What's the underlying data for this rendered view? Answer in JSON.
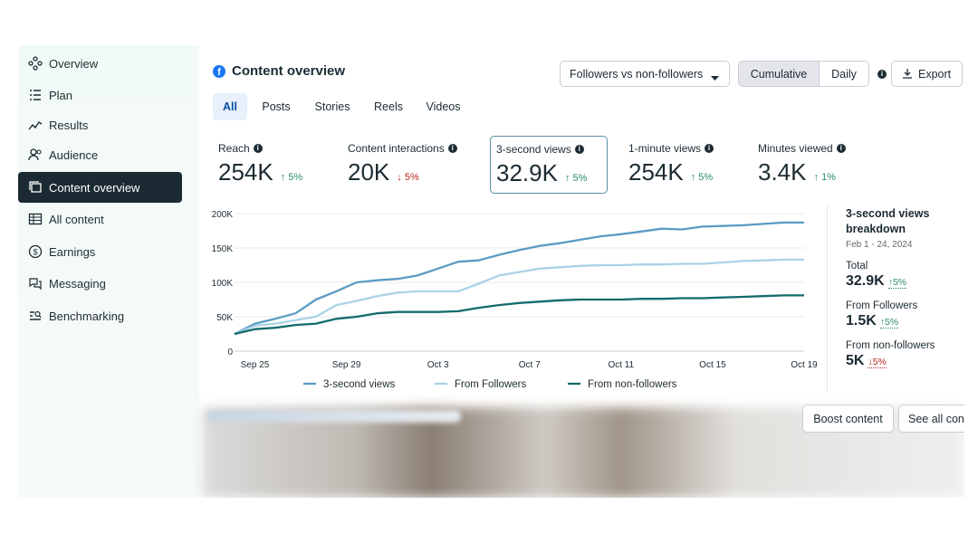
{
  "sidebar": {
    "items": [
      {
        "label": "Overview",
        "icon": "overview-icon",
        "active": false
      },
      {
        "label": "Plan",
        "icon": "plan-icon",
        "active": false
      },
      {
        "label": "Results",
        "icon": "results-icon",
        "active": false
      },
      {
        "label": "Audience",
        "icon": "audience-icon",
        "active": false
      },
      {
        "label": "Content overview",
        "icon": "content-overview-icon",
        "active": true
      },
      {
        "label": "All content",
        "icon": "all-content-icon",
        "active": false
      },
      {
        "label": "Earnings",
        "icon": "earnings-icon",
        "active": false
      },
      {
        "label": "Messaging",
        "icon": "messaging-icon",
        "active": false
      },
      {
        "label": "Benchmarking",
        "icon": "benchmarking-icon",
        "active": false
      }
    ]
  },
  "header": {
    "title": "Content overview",
    "filter_select": "Followers vs non-followers",
    "toggle": [
      "Cumulative",
      "Daily"
    ],
    "toggle_selected": "Cumulative",
    "export_label": "Export"
  },
  "tabs": [
    {
      "label": "All",
      "active": true
    },
    {
      "label": "Posts",
      "active": false
    },
    {
      "label": "Stories",
      "active": false
    },
    {
      "label": "Reels",
      "active": false
    },
    {
      "label": "Videos",
      "active": false
    }
  ],
  "metrics": [
    {
      "label": "Reach",
      "value": "254K",
      "change": "5%",
      "direction": "up",
      "selected": false
    },
    {
      "label": "Content interactions",
      "value": "20K",
      "change": "5%",
      "direction": "down",
      "selected": false
    },
    {
      "label": "3-second views",
      "value": "32.9K",
      "change": "5%",
      "direction": "up",
      "selected": true
    },
    {
      "label": "1-minute views",
      "value": "254K",
      "change": "5%",
      "direction": "up",
      "selected": false
    },
    {
      "label": "Minutes viewed",
      "value": "3.4K",
      "change": "1%",
      "direction": "up",
      "selected": false
    }
  ],
  "chart_data": {
    "type": "line",
    "x_tick_labels": [
      "Sep 25",
      "Sep 29",
      "Oct 3",
      "Oct 7",
      "Oct 11",
      "Oct 15",
      "Oct 19"
    ],
    "y_tick_labels": [
      "0",
      "50K",
      "100K",
      "150K",
      "200K"
    ],
    "ylim": [
      0,
      200000
    ],
    "x_count": 29,
    "series": [
      {
        "name": "3-second views",
        "color": "#5b9bc4",
        "values": [
          25000,
          40000,
          47000,
          55000,
          75000,
          87000,
          100000,
          103000,
          105000,
          110000,
          120000,
          130000,
          132000,
          140000,
          147000,
          153000,
          157000,
          162000,
          167000,
          170000,
          174000,
          178000,
          177000,
          181000,
          182000,
          183000,
          185000,
          187000,
          187000
        ]
      },
      {
        "name": "From Followers",
        "color": "#a9d3e6",
        "values": [
          25000,
          37000,
          40000,
          45000,
          50000,
          67000,
          73000,
          80000,
          85000,
          87000,
          87000,
          87000,
          98000,
          110000,
          115000,
          120000,
          122000,
          124000,
          125000,
          125000,
          126000,
          126000,
          127000,
          127000,
          129000,
          131000,
          132000,
          133000,
          133000
        ]
      },
      {
        "name": "From non-followers",
        "color": "#146b6b",
        "values": [
          25000,
          32000,
          34000,
          38000,
          40000,
          47000,
          50000,
          55000,
          57000,
          57000,
          57000,
          58000,
          63000,
          67000,
          70000,
          72000,
          74000,
          75000,
          75000,
          75000,
          76000,
          76000,
          77000,
          77000,
          78000,
          79000,
          80000,
          81000,
          81000
        ]
      }
    ],
    "grid": true,
    "legend": "bottom"
  },
  "breakdown": {
    "title": "3-second views breakdown",
    "date_range": "Feb 1 - 24, 2024",
    "rows": [
      {
        "label": "Total",
        "value": "32.9K",
        "change": "5%",
        "direction": "up"
      },
      {
        "label": "From Followers",
        "value": "1.5K",
        "change": "5%",
        "direction": "up"
      },
      {
        "label": "From non-followers",
        "value": "5K",
        "change": "5%",
        "direction": "down"
      }
    ]
  },
  "actions": {
    "boost_label": "Boost content",
    "see_all_label": "See all cont"
  },
  "colors": {
    "sidebar_active_bg": "#1c2b33",
    "accent_blue": "#1877f2",
    "up_green": "#2b8a6a",
    "down_red": "#b3261e"
  }
}
